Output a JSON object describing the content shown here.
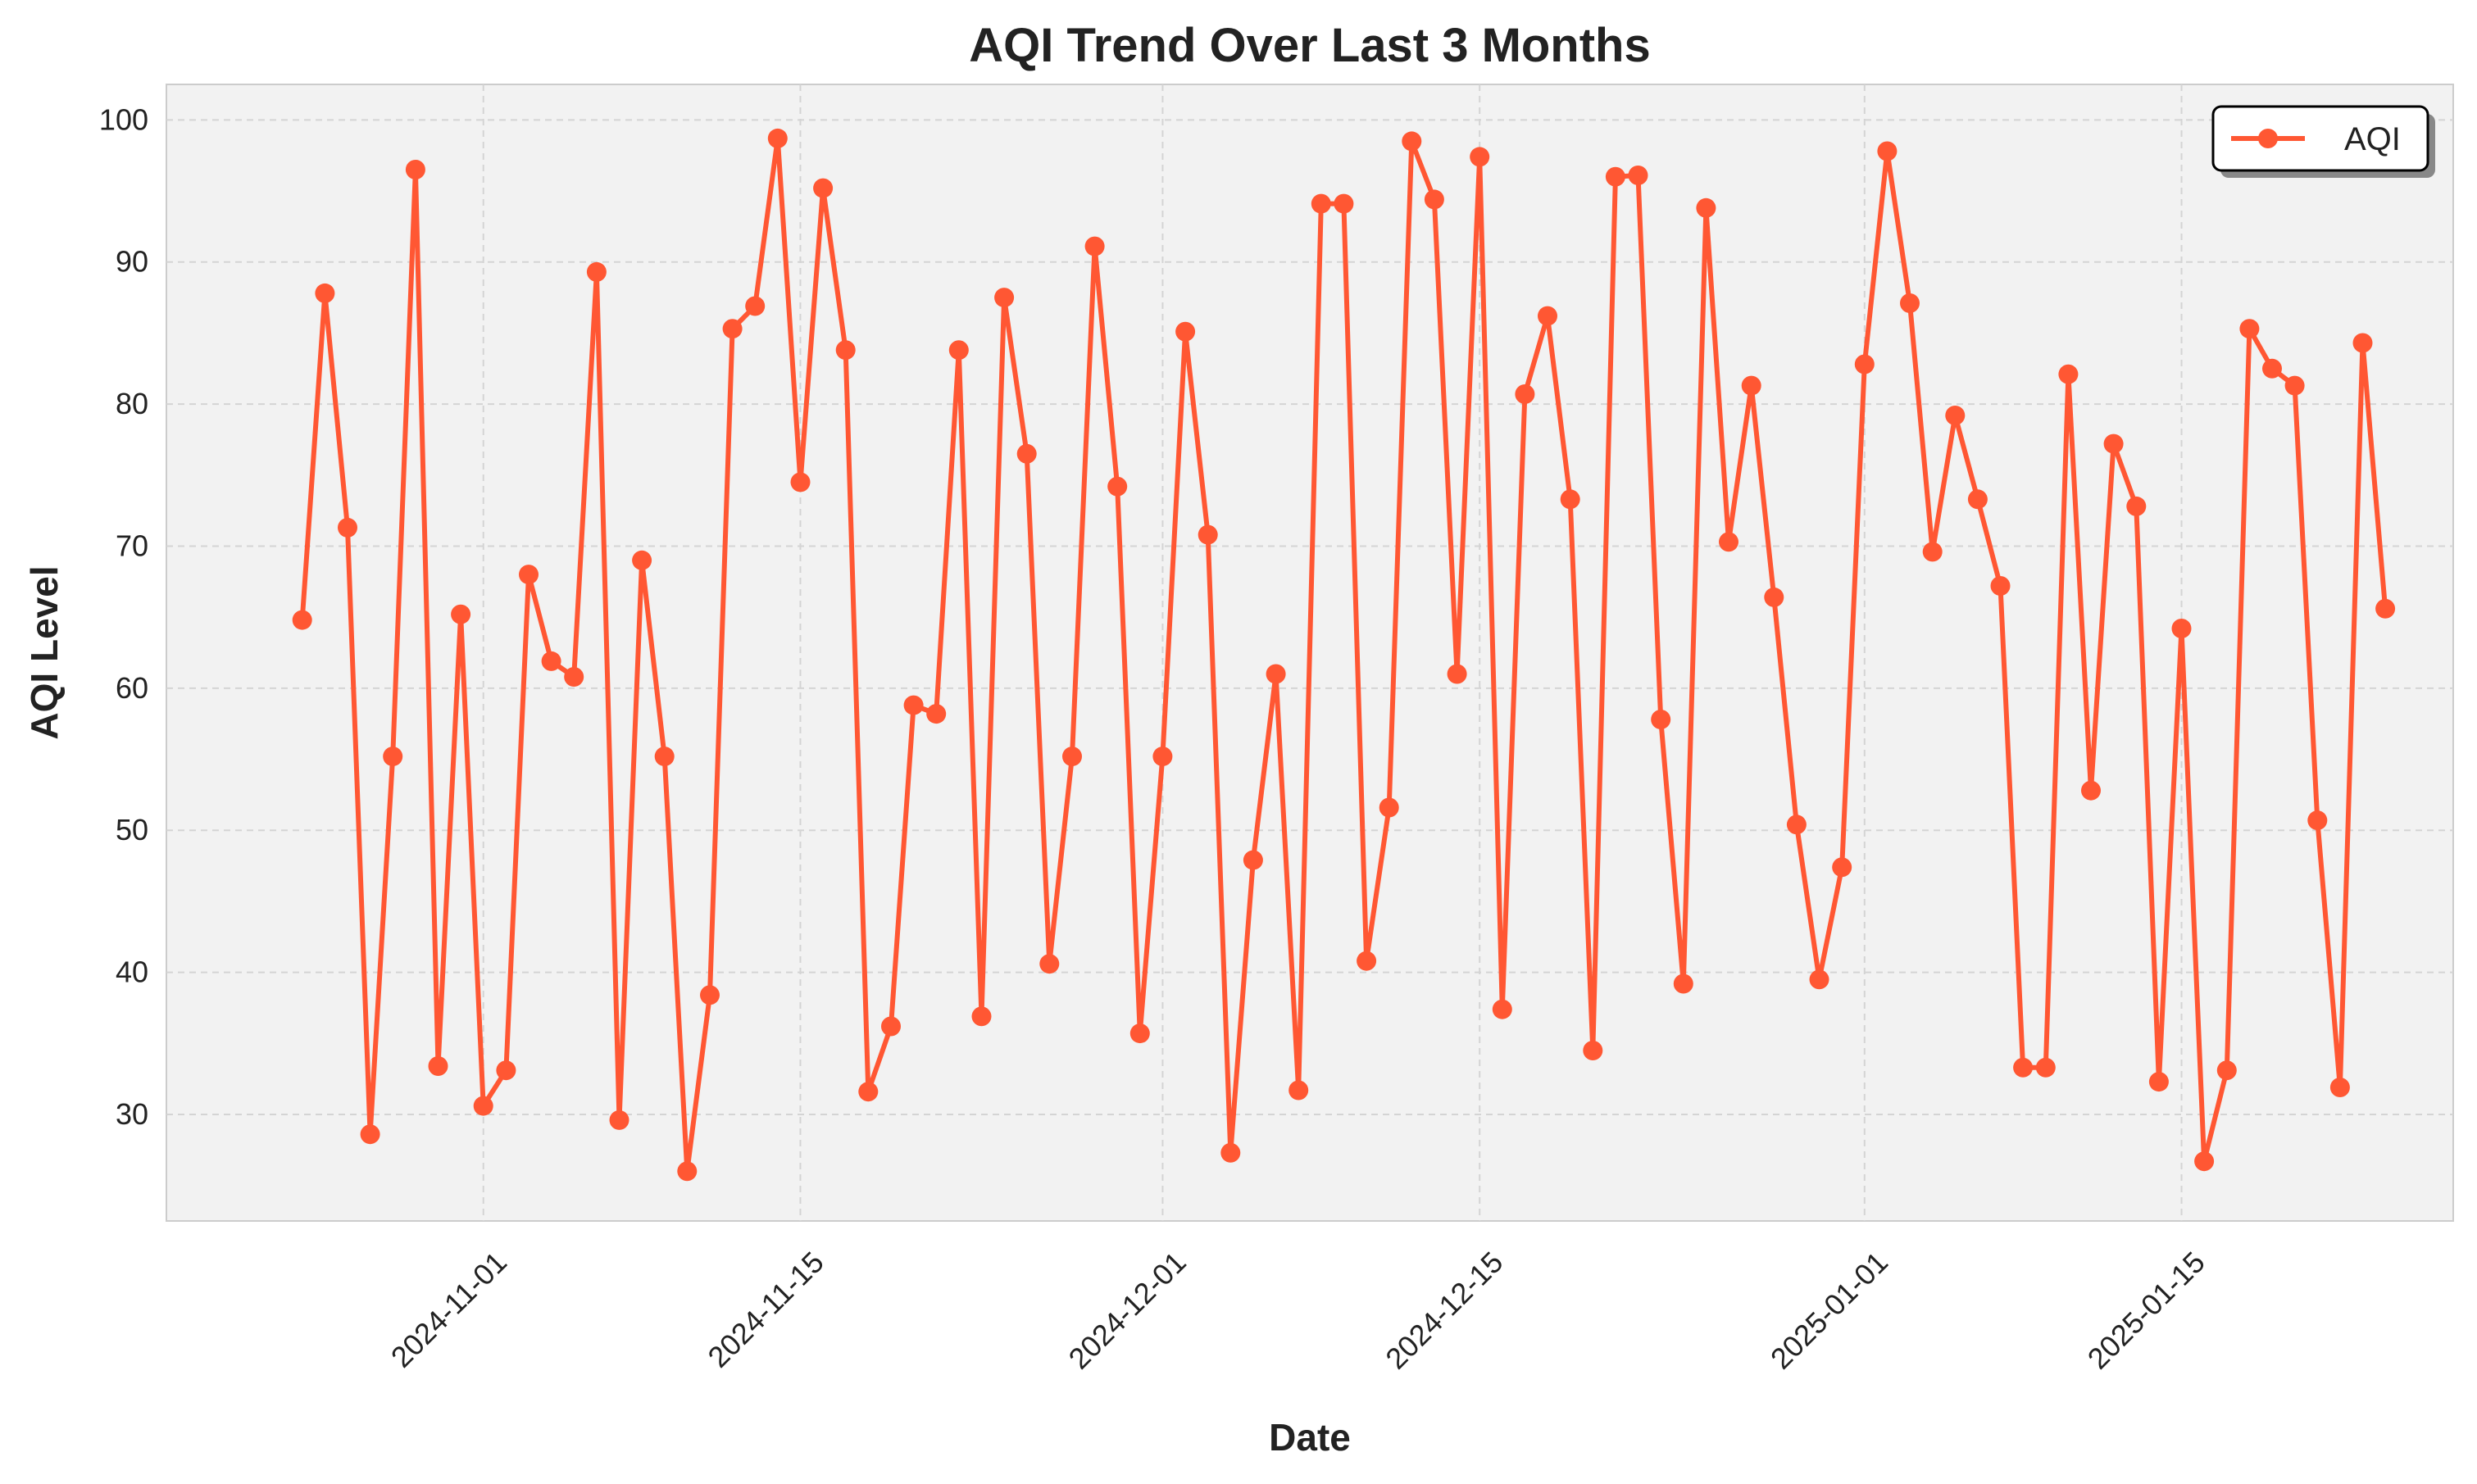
{
  "chart_data": {
    "type": "line",
    "title": "AQI Trend Over Last 3 Months",
    "xlabel": "Date",
    "ylabel": "AQI Level",
    "x_start": "2024-10-24",
    "x_step_days": 1,
    "x_range": [
      "2024-10-18",
      "2025-01-27"
    ],
    "ylim": [
      22.5,
      102.5
    ],
    "yticks": [
      30,
      40,
      50,
      60,
      70,
      80,
      90,
      100
    ],
    "xticks": [
      "2024-11-01",
      "2024-11-15",
      "2024-12-01",
      "2024-12-15",
      "2025-01-01",
      "2025-01-15"
    ],
    "grid": true,
    "legend_position": "top-right",
    "series": [
      {
        "name": "AQI",
        "color": "#ff5733",
        "marker": "circle",
        "values": [
          64.8,
          87.8,
          71.3,
          28.6,
          55.2,
          96.5,
          33.4,
          65.2,
          30.6,
          33.1,
          68.0,
          61.9,
          60.8,
          89.3,
          29.6,
          69.0,
          55.2,
          26.0,
          38.4,
          85.3,
          86.9,
          98.7,
          74.5,
          95.2,
          83.8,
          31.6,
          36.2,
          58.8,
          58.2,
          83.8,
          36.9,
          87.5,
          76.5,
          40.6,
          55.2,
          91.1,
          74.2,
          35.7,
          55.2,
          85.1,
          70.8,
          27.3,
          47.9,
          61.0,
          31.7,
          94.1,
          94.1,
          40.8,
          51.6,
          98.5,
          94.4,
          61.0,
          97.4,
          37.4,
          80.7,
          86.2,
          73.3,
          34.5,
          96.0,
          96.1,
          57.8,
          39.2,
          93.8,
          70.3,
          81.3,
          66.4,
          50.4,
          39.5,
          47.4,
          82.8,
          97.8,
          87.1,
          69.6,
          79.2,
          73.3,
          67.2,
          33.3,
          33.3,
          82.1,
          52.8,
          77.2,
          72.8,
          32.3,
          64.2,
          26.7,
          33.1,
          85.3,
          82.5,
          81.3,
          50.7,
          31.9,
          84.3,
          65.6
        ]
      }
    ]
  }
}
